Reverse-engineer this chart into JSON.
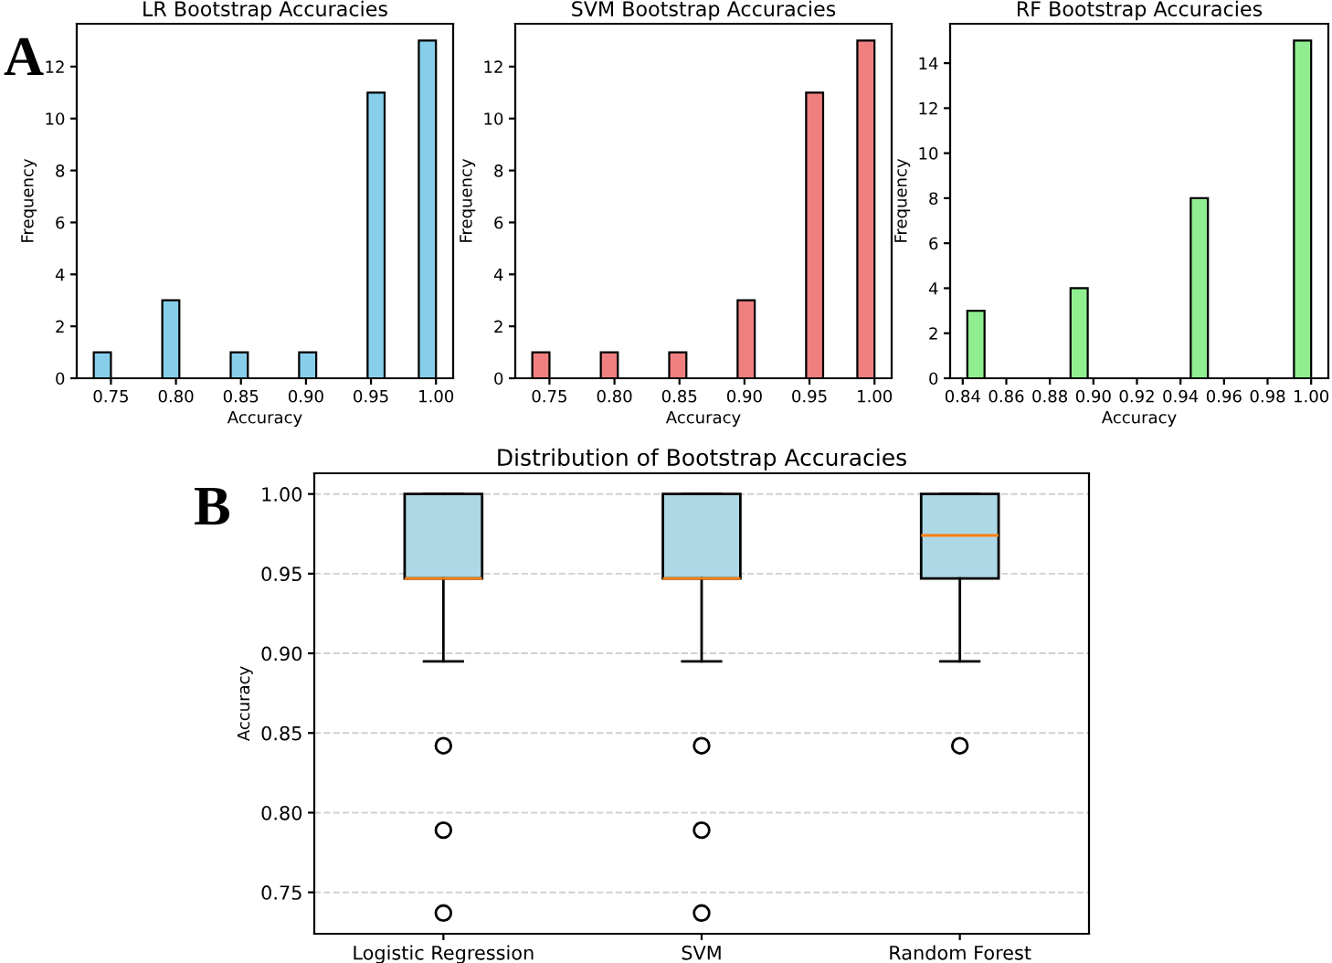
{
  "chart_data": [
    {
      "type": "histogram",
      "title": "LR Bootstrap Accuracies",
      "xlabel": "Accuracy",
      "ylabel": "Frequency",
      "annotations": [
        "A"
      ],
      "bins": [
        0.7368,
        0.75,
        0.7632,
        0.7763,
        0.7895,
        0.8026,
        0.8158,
        0.8289,
        0.8421,
        0.8553,
        0.8684,
        0.8816,
        0.8947,
        0.9079,
        0.9211,
        0.9342,
        0.9474,
        0.9605,
        0.9737,
        0.9868,
        1.0
      ],
      "values": [
        1,
        0,
        0,
        0,
        3,
        0,
        0,
        0,
        1,
        0,
        0,
        0,
        1,
        0,
        0,
        0,
        11,
        0,
        0,
        13
      ],
      "color": "#87ceeb",
      "xlim": [
        0.7237,
        1.0132
      ],
      "ylim": [
        0,
        13.65
      ],
      "xticks": [
        0.75,
        {
          "value": 0.8,
          "label": "0.80"
        },
        0.85,
        {
          "value": 0.9,
          "label": "0.90"
        },
        0.95,
        {
          "value": 1.0,
          "label": "1.00"
        }
      ],
      "yticks": [
        0,
        2,
        4,
        6,
        8,
        10,
        12
      ],
      "grid": false
    },
    {
      "type": "histogram",
      "title": "SVM Bootstrap Accuracies",
      "xlabel": "Accuracy",
      "ylabel": "Frequency",
      "bins": [
        0.7368,
        0.75,
        0.7632,
        0.7763,
        0.7895,
        0.8026,
        0.8158,
        0.8289,
        0.8421,
        0.8553,
        0.8684,
        0.8816,
        0.8947,
        0.9079,
        0.9211,
        0.9342,
        0.9474,
        0.9605,
        0.9737,
        0.9868,
        1.0
      ],
      "values": [
        1,
        0,
        0,
        0,
        1,
        0,
        0,
        0,
        1,
        0,
        0,
        0,
        3,
        0,
        0,
        0,
        11,
        0,
        0,
        13
      ],
      "color": "#f08080",
      "xlim": [
        0.7237,
        1.0132
      ],
      "ylim": [
        0,
        13.65
      ],
      "xticks": [
        0.75,
        {
          "value": 0.8,
          "label": "0.80"
        },
        0.85,
        {
          "value": 0.9,
          "label": "0.90"
        },
        0.95,
        {
          "value": 1.0,
          "label": "1.00"
        }
      ],
      "yticks": [
        0,
        2,
        4,
        6,
        8,
        10,
        12
      ],
      "grid": false
    },
    {
      "type": "histogram",
      "title": "RF Bootstrap Accuracies",
      "xlabel": "Accuracy",
      "ylabel": "Frequency",
      "bins": [
        0.8421,
        0.85,
        0.8579,
        0.8658,
        0.8737,
        0.8816,
        0.8895,
        0.8974,
        0.9053,
        0.9132,
        0.9211,
        0.9289,
        0.9368,
        0.9447,
        0.9526,
        0.9605,
        0.9684,
        0.9763,
        0.9842,
        0.9921,
        1.0
      ],
      "values": [
        3,
        0,
        0,
        0,
        0,
        0,
        4,
        0,
        0,
        0,
        0,
        0,
        0,
        8,
        0,
        0,
        0,
        0,
        0,
        15
      ],
      "color": "#90ee90",
      "xlim": [
        0.8342,
        1.0079
      ],
      "ylim": [
        0,
        15.75
      ],
      "xticks": [
        0.84,
        0.86,
        0.88,
        {
          "value": 0.9,
          "label": "0.90"
        },
        0.92,
        0.94,
        0.96,
        0.98,
        {
          "value": 1.0,
          "label": "1.00"
        }
      ],
      "yticks": [
        0,
        2,
        4,
        6,
        8,
        10,
        12,
        14
      ],
      "grid": false
    },
    {
      "type": "box",
      "title": "Distribution of Bootstrap Accuracies",
      "ylabel": "Accuracy",
      "annotations": [
        "B"
      ],
      "categories": [
        "Logistic Regression",
        "SVM",
        "Random Forest"
      ],
      "boxes": [
        {
          "low": 0.895,
          "q1": 0.947,
          "median": 0.947,
          "q3": 1.0,
          "high": 1.0,
          "outliers": [
            0.842,
            0.789,
            0.737
          ]
        },
        {
          "low": 0.895,
          "q1": 0.947,
          "median": 0.947,
          "q3": 1.0,
          "high": 1.0,
          "outliers": [
            0.842,
            0.789,
            0.737
          ]
        },
        {
          "low": 0.895,
          "q1": 0.947,
          "median": 0.974,
          "q3": 1.0,
          "high": 1.0,
          "outliers": [
            0.842
          ]
        }
      ],
      "color": "#add8e6",
      "ylim": [
        0.724,
        1.013
      ],
      "yticks": [
        0.75,
        {
          "value": 0.8,
          "label": "0.80"
        },
        0.85,
        {
          "value": 0.9,
          "label": "0.90"
        },
        0.95,
        {
          "value": 1.0,
          "label": "1.00"
        }
      ],
      "grid": "y"
    }
  ]
}
